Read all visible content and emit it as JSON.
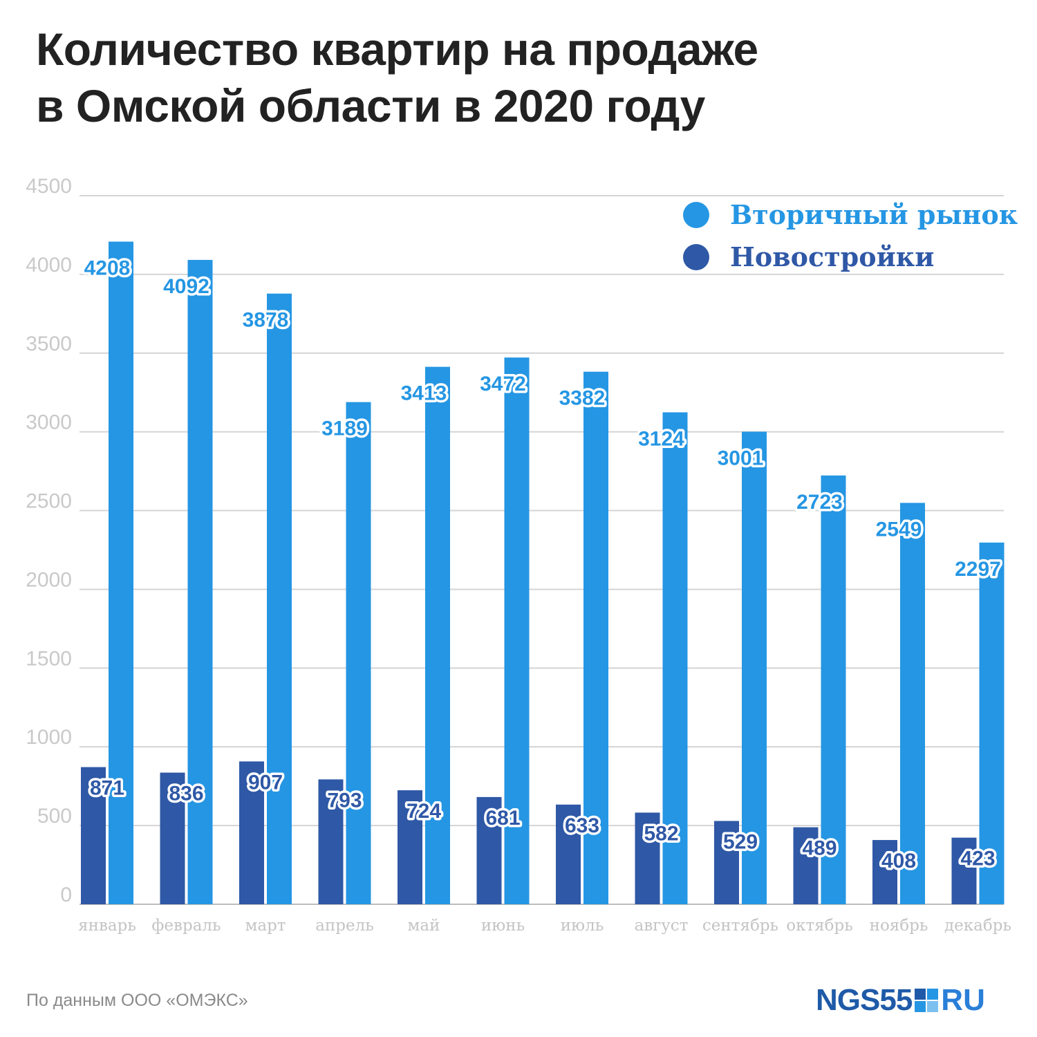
{
  "title_lines": [
    "Количество квартир на продаже",
    "в Омской области в 2020 году"
  ],
  "source": "По данным ООО «ОМЭКС»",
  "logo": {
    "left": "NGS55",
    "right": "RU"
  },
  "colors": {
    "secondary": "#2596e3",
    "newbuild": "#2f58a6",
    "grid": "#d4d4d4",
    "axis": "#c9c9c9"
  },
  "chart_data": {
    "type": "bar",
    "title": "Количество квартир на продаже в Омской области в 2020 году",
    "categories": [
      "январь",
      "февраль",
      "март",
      "апрель",
      "май",
      "июнь",
      "июль",
      "август",
      "сентябрь",
      "октябрь",
      "ноябрь",
      "декабрь"
    ],
    "series": [
      {
        "name": "Новостройки",
        "color": "#2f58a6",
        "values": [
          871,
          836,
          907,
          793,
          724,
          681,
          633,
          582,
          529,
          489,
          408,
          423
        ]
      },
      {
        "name": "Вторичный рынок",
        "color": "#2596e3",
        "values": [
          4208,
          4092,
          3878,
          3189,
          3413,
          3472,
          3382,
          3124,
          3001,
          2723,
          2549,
          2297
        ]
      }
    ],
    "yticks": [
      0,
      500,
      1000,
      1500,
      2000,
      2500,
      3000,
      3500,
      4000,
      4500
    ],
    "ylim": [
      0,
      4500
    ],
    "grid": true,
    "legend": "top-right",
    "legend_order": [
      "Вторичный рынок",
      "Новостройки"
    ]
  }
}
